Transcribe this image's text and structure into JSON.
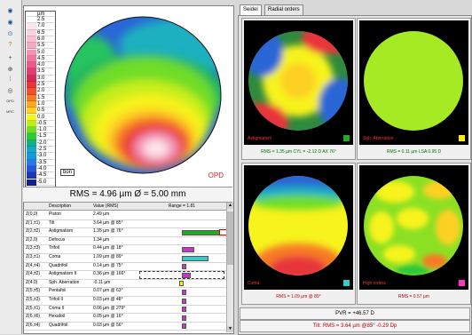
{
  "toolbar": {
    "buttons": [
      "eye-right-icon",
      "eye-left-icon",
      "zoom-icon",
      "help-icon",
      "cross-icon",
      "target-icon",
      "grid-icon",
      "rings-icon",
      "opd-icon",
      "mrc-icon"
    ],
    "labels": {
      "opd": "OPD",
      "mrc": "MRC"
    }
  },
  "scale": {
    "unit": "µm",
    "ticks": [
      "2.5",
      "7.0",
      "6.5",
      "6.0",
      "5.5",
      "5.0",
      "4.5",
      "4.0",
      "3.5",
      "3.0",
      "2.5",
      "2.0",
      "1.5",
      "1.0",
      "0.5",
      "0.0",
      "-0.5",
      "-1.0",
      "-1.5",
      "-2.0",
      "-2.5",
      "-3.0",
      "-3.5",
      "-4.0",
      "-4.5",
      "-5.0"
    ],
    "colors": [
      "#ffffff",
      "#fde6ee",
      "#fbd3e1",
      "#f9bfd3",
      "#f6a9c4",
      "#f392b3",
      "#ee78a0",
      "#e85c8a",
      "#e03e70",
      "#d42a54",
      "#e8343a",
      "#f0502e",
      "#f77a26",
      "#fba722",
      "#fdd022",
      "#f7f31c",
      "#bdee1f",
      "#70dd26",
      "#2cc839",
      "#10b08c",
      "#16a8c4",
      "#1898dc",
      "#2a78e4",
      "#2a55d8",
      "#1c36b8",
      "#0f1f90"
    ],
    "badge": "bon"
  },
  "left_map": {
    "label": "OPD",
    "rms_text": "RMS = 4.96 µm   Ø = 5.00 mm"
  },
  "table": {
    "headers": [
      "",
      "Description",
      "Value (RMS)",
      "Range = 1.81"
    ],
    "rows": [
      {
        "z": "Z(0,0)",
        "desc": "Piston",
        "val": "2.49 µm",
        "bar": 0
      },
      {
        "z": "Z(1,±1)",
        "desc": "Tilt",
        "val": "3.64 µm @ 85°",
        "bar": 0
      },
      {
        "z": "Z(2,±2)",
        "desc": "Astigmatism",
        "val": "1.35 µm @ 76°",
        "bar": 0.42,
        "barColor": "#22aa22",
        "outline": true
      },
      {
        "z": "Z(2,0)",
        "desc": "Defocus",
        "val": "1.34 µm",
        "bar": 0
      },
      {
        "z": "Z(3,±3)",
        "desc": "Trifoil",
        "val": "0.44 µm @ 18°",
        "bar": 0.12,
        "barColor": "#cc33cc"
      },
      {
        "z": "Z(3,±1)",
        "desc": "Coma",
        "val": "1.09 µm @ 89°",
        "bar": 0.28,
        "barColor": "#33cccc"
      },
      {
        "z": "Z(4,±4)",
        "desc": "Quadrifoil",
        "val": "0.14 µm @ 75°",
        "bar": 0.03,
        "barColor": "#cc33cc"
      },
      {
        "z": "Z(4,±2)",
        "desc": "Astigmatism II",
        "val": "0.36 µm @ 166°",
        "bar": 0.08,
        "barColor": "#cc33cc",
        "dashed": true
      },
      {
        "z": "Z(4,0)",
        "desc": "Sph. Aberration",
        "val": "-0.11 µm",
        "bar": 0.03,
        "barColor": "#ffee00",
        "neg": true
      },
      {
        "z": "Z(5,±5)",
        "desc": "Pentafoil",
        "val": "0.07 µm @ 63°",
        "bar": 0.02,
        "barColor": "#cc33cc"
      },
      {
        "z": "Z(5,±3)",
        "desc": "Trifoil II",
        "val": "0.03 µm @ 48°",
        "bar": 0.01,
        "barColor": "#cc33cc"
      },
      {
        "z": "Z(5,±1)",
        "desc": "Coma II",
        "val": "0.06 µm @ 279°",
        "bar": 0.02,
        "barColor": "#cc33cc"
      },
      {
        "z": "Z(6,±6)",
        "desc": "Hexafoil",
        "val": "0.05 µm @ 16°",
        "bar": 0.01,
        "barColor": "#cc33cc"
      },
      {
        "z": "Z(6,±4)",
        "desc": "Quadrifoil",
        "val": "0.03 µm @ 56°",
        "bar": 0.01,
        "barColor": "#cc33cc"
      }
    ]
  },
  "tabs": [
    "Seidel",
    "Radial orders"
  ],
  "maps": [
    {
      "label": "Astigmatism",
      "caption": "RMS = 1.35 µm  CYL = -2.12 D AX 76°",
      "color": "#22aa22",
      "captionColor": "#007000"
    },
    {
      "label": "Sph. Aberration",
      "caption": "RMS = 0.11 µm  LSA 0.95 D",
      "color": "#ffee00",
      "captionColor": "#007000"
    },
    {
      "label": "Coma",
      "caption": "RMS = 1.09 µm @ 89°",
      "color": "#33cccc",
      "captionColor": "#c00000"
    },
    {
      "label": "High orders",
      "caption": "RMS = 0.57 µm",
      "color": "#ff33cc",
      "captionColor": "#c00000"
    }
  ],
  "pvr": "PVR = +46.57 D",
  "tilt": "Tilt: RMS = 3.64 µm @85°  -0.29 Dp"
}
